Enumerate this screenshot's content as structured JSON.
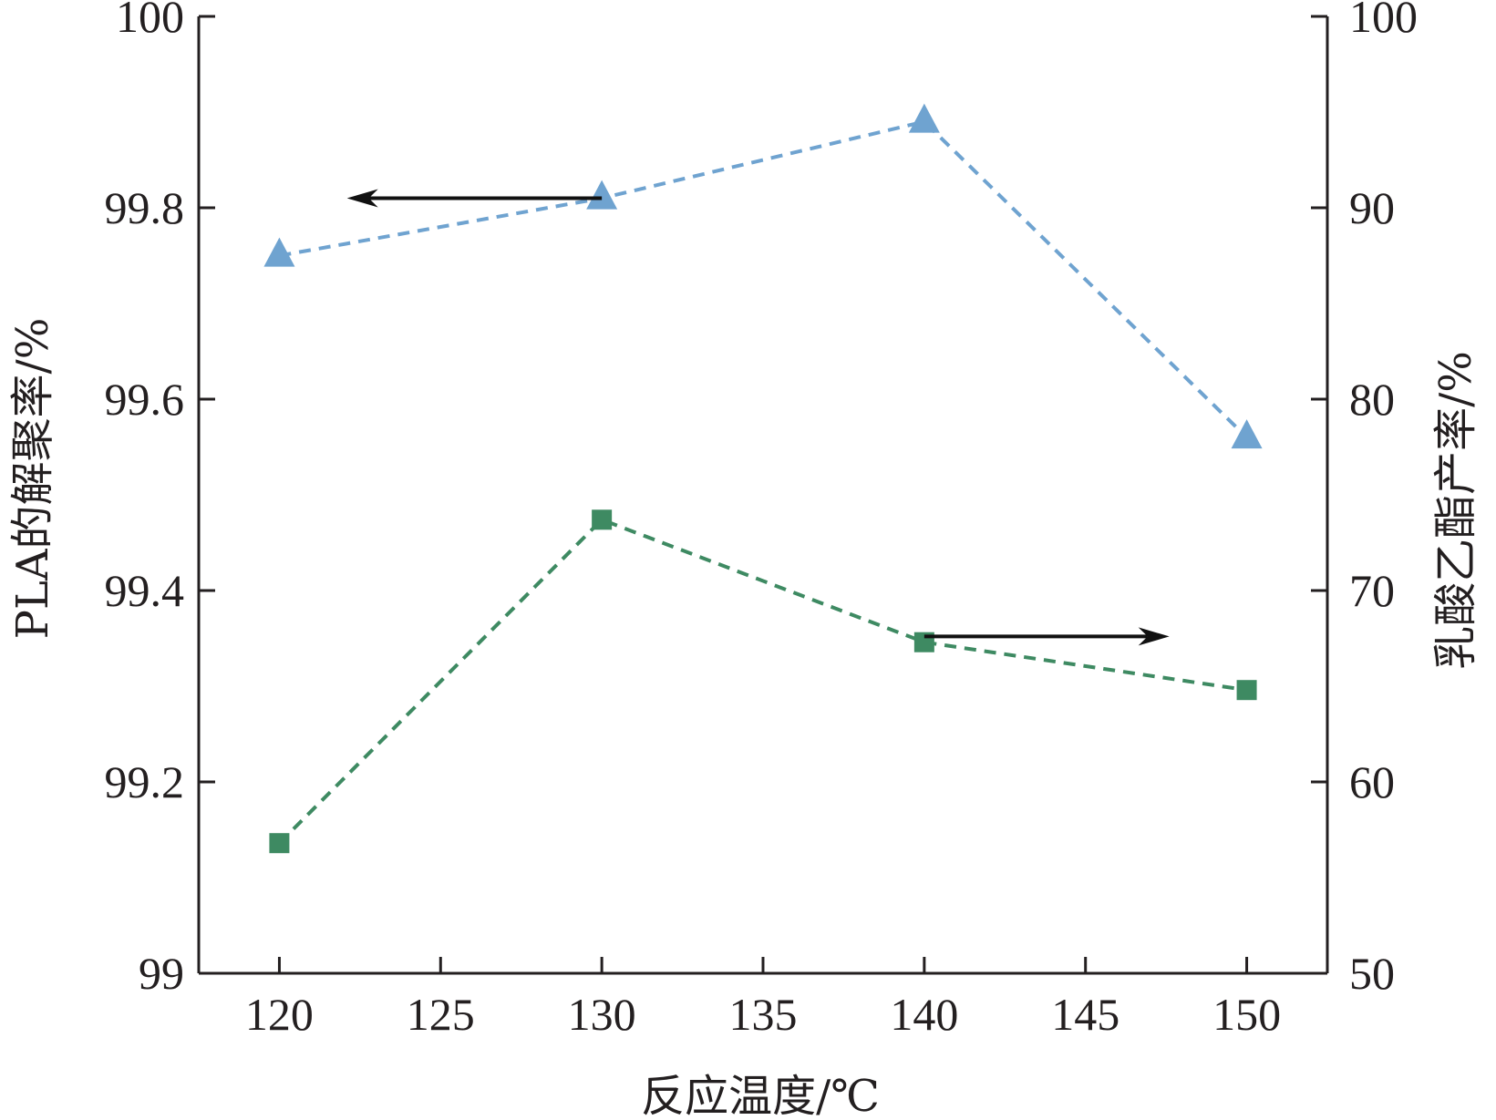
{
  "chart_data": {
    "type": "line",
    "xlabel": "反应温度/℃",
    "ylabel_left": "PLA的解聚率/%",
    "ylabel_right": "乳酸乙酯产率/%",
    "xlim": [
      117.5,
      152.5
    ],
    "ylim_left": [
      99,
      100
    ],
    "ylim_right": [
      50,
      100
    ],
    "x_ticks": [
      "120",
      "125",
      "130",
      "135",
      "140",
      "145",
      "150"
    ],
    "y_ticks_left": [
      "99",
      "99.2",
      "99.4",
      "99.6",
      "99.8",
      "100"
    ],
    "y_ticks_right": [
      "50",
      "60",
      "70",
      "80",
      "90",
      "100"
    ],
    "grid": false,
    "legend": "none",
    "series": [
      {
        "axis": "left",
        "marker": "triangle",
        "color": "#6fa3d0",
        "x": [
          120,
          130,
          140,
          150
        ],
        "values": [
          99.75,
          99.81,
          99.89,
          99.56
        ]
      },
      {
        "axis": "right",
        "marker": "square",
        "color": "#3e8a62",
        "x": [
          120,
          130,
          140,
          150
        ],
        "values": [
          56.8,
          73.7,
          67.3,
          64.8
        ]
      }
    ],
    "annotations": [
      {
        "type": "arrow",
        "direction": "left",
        "points_to": "left-axis",
        "x_from": 130,
        "x_to": 122.1,
        "y": 99.81,
        "y_axis": "left"
      },
      {
        "type": "arrow",
        "direction": "right",
        "points_to": "right-axis",
        "x_from": 140,
        "x_to": 147.6,
        "y": 67.6,
        "y_axis": "right"
      }
    ]
  }
}
